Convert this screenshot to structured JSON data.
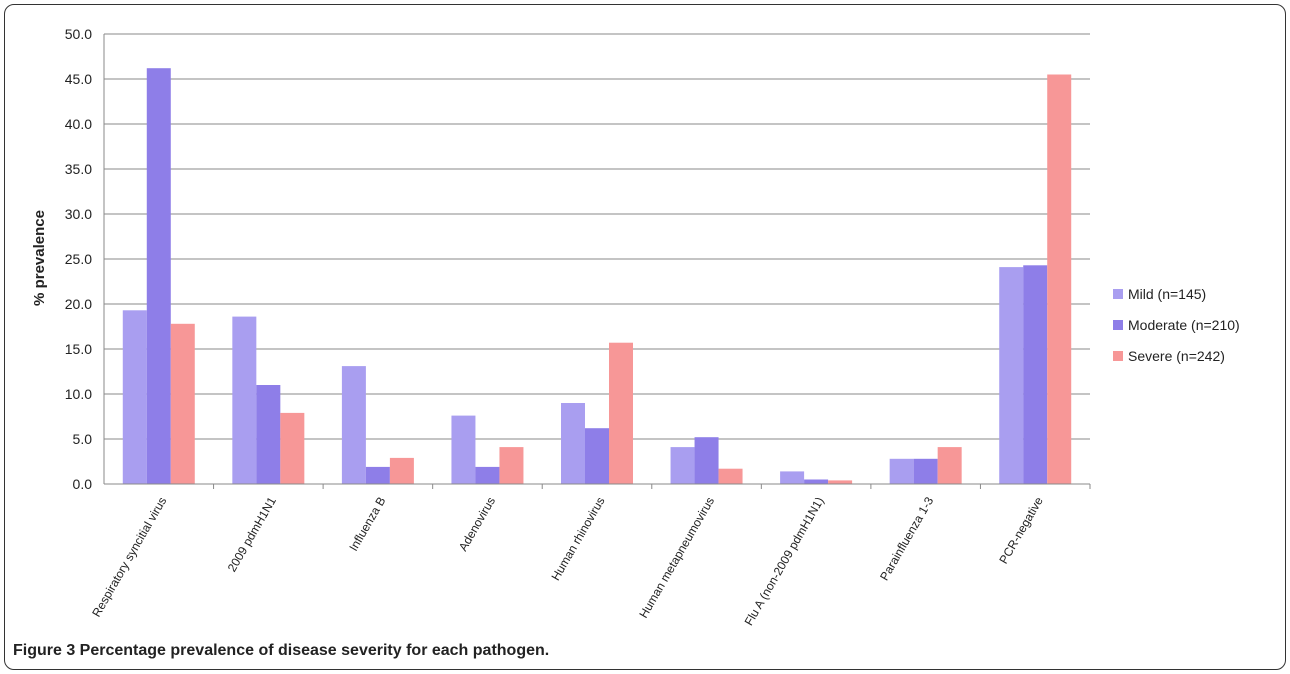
{
  "figure": {
    "caption_label": "Figure 3",
    "caption_text": " Percentage prevalence of disease severity for each pathogen."
  },
  "chart_data": {
    "type": "bar",
    "ylabel": "% prevalence",
    "ylim": [
      0,
      50
    ],
    "y_ticks": [
      "0.0",
      "5.0",
      "10.0",
      "15.0",
      "20.0",
      "25.0",
      "30.0",
      "35.0",
      "40.0",
      "45.0",
      "50.0"
    ],
    "grid": true,
    "legend_position": "right",
    "categories": [
      "Respiratory syncitial virus",
      "2009 pdmH1N1",
      "Influenza B",
      "Adenovirus",
      "Human rhinovirus",
      "Human metapneumovirus",
      "Flu A (non-2009 pdmH1N1)",
      "Parainfluenza 1-3",
      "PCR-negative"
    ],
    "series": [
      {
        "name": "Mild (n=145)",
        "color": "#a99ef0",
        "values": [
          19.3,
          18.6,
          13.1,
          7.6,
          9.0,
          4.1,
          1.4,
          2.8,
          24.1
        ]
      },
      {
        "name": "Moderate (n=210)",
        "color": "#8e7ee8",
        "values": [
          46.2,
          11.0,
          1.9,
          1.9,
          6.2,
          5.2,
          0.5,
          2.8,
          24.3
        ]
      },
      {
        "name": "Severe (n=242)",
        "color": "#f79797",
        "values": [
          17.8,
          7.9,
          2.9,
          4.1,
          15.7,
          1.7,
          0.4,
          4.1,
          45.5
        ]
      }
    ]
  }
}
